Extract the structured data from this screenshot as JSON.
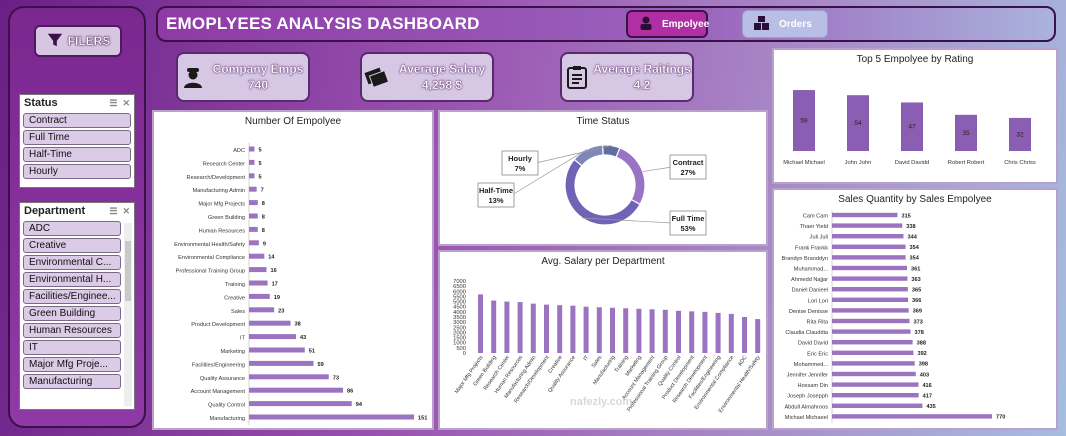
{
  "header": {
    "title": "EMOPLYEES ANALYSIS DASHBOARD",
    "nav_employee": "Empolyee",
    "nav_orders": "Orders"
  },
  "sidebar": {
    "filters_label": "FILERS",
    "status": {
      "title": "Status",
      "items": [
        "Contract",
        "Full Time",
        "Half-Time",
        "Hourly"
      ]
    },
    "department": {
      "title": "Department",
      "items": [
        "ADC",
        "Creative",
        "Environmental C...",
        "Environmental H...",
        "Facilities/Enginee...",
        "Green Building",
        "Human Resources",
        "IT",
        "Major Mfg Proje...",
        "Manufacturing"
      ]
    }
  },
  "kpis": [
    {
      "label": "Company Emps",
      "value": "740",
      "icon": "user-icon"
    },
    {
      "label": "Average Salary",
      "value": "4,258 $",
      "icon": "money-icon"
    },
    {
      "label": "Average Raitings",
      "value": "4.2",
      "icon": "clipboard-icon"
    }
  ],
  "colors": {
    "bar": "#9b73c0",
    "bar_dark": "#8a5fb3",
    "donut_full": "#6f63b6",
    "donut_contract": "#9a74c4",
    "donut_half": "#7f86b9",
    "donut_hourly": "#5f6fa0"
  },
  "watermark": "nafezly.com",
  "chart_data": [
    {
      "type": "bar",
      "orientation": "horizontal",
      "title": "Number Of Empolyee",
      "categories": [
        "ADC",
        "Research Center",
        "Research/Development",
        "Manufacturing Admin",
        "Major Mfg Projects",
        "Green Building",
        "Human Resources",
        "Environmental Health/Safety",
        "Environmental Compliance",
        "Professional Training Group",
        "Training",
        "Creative",
        "Sales",
        "Product Development",
        "IT",
        "Marketing",
        "Facilities/Engineering",
        "Quality Assurance",
        "Account Management",
        "Quality Control",
        "Manufacturing"
      ],
      "values": [
        5,
        5,
        5,
        7,
        8,
        8,
        8,
        9,
        14,
        16,
        17,
        19,
        23,
        38,
        43,
        51,
        59,
        73,
        86,
        94,
        151
      ]
    },
    {
      "type": "pie",
      "title": "Time Status",
      "labels": [
        "Contract",
        "Full Time",
        "Half-Time",
        "Hourly"
      ],
      "values": [
        27,
        53,
        13,
        7
      ],
      "display": [
        "27%",
        "53%",
        "13%",
        "7%"
      ]
    },
    {
      "type": "bar",
      "title": "Avg. Salary per Department",
      "categories": [
        "Major Mfg Projects",
        "Green Building",
        "Research Center",
        "Human Resources",
        "Manufacturing Admin",
        "Research/Development",
        "Creative",
        "Quality Assurance",
        "IT",
        "Sales",
        "Manufacturing",
        "Training",
        "Marketing",
        "Account Management",
        "Professional Training Group",
        "Quality Control",
        "Product Development",
        "Research Development",
        "Facilities/Engineering",
        "Environmental Compliance",
        "ADC",
        "Environmental Health/Safety"
      ],
      "values": [
        5700,
        5100,
        5000,
        4950,
        4800,
        4700,
        4650,
        4600,
        4500,
        4450,
        4400,
        4350,
        4300,
        4250,
        4200,
        4100,
        4050,
        4000,
        3900,
        3800,
        3500,
        3300
      ],
      "yticks": [
        0,
        500,
        1000,
        1500,
        2000,
        2500,
        3000,
        3500,
        4000,
        4500,
        5000,
        5500,
        6000,
        6500,
        7000
      ],
      "ylim": [
        0,
        7000
      ]
    },
    {
      "type": "bar",
      "title": "Top 5 Empolyee by Rating",
      "categories": [
        "Michael Michael",
        "John John",
        "David Davidd",
        "Robert Robert",
        "Chris Chriss"
      ],
      "values": [
        59,
        54,
        47,
        35,
        32
      ]
    },
    {
      "type": "bar",
      "orientation": "horizontal",
      "title": "Sales Quantity by Sales Empolyee",
      "categories": [
        "Cam Cam",
        "Thaer Yield",
        "Juli Juli",
        "Frank Frankk",
        "Brandyn Branddyn",
        "Muhammad...",
        "Ahmedd Najjar",
        "Daniel Danieel",
        "Lori Lori",
        "Denise Denisse",
        "Rita Rita",
        "Claudia Clauddia",
        "David David",
        "Eric Eric",
        "Mohammed...",
        "Jennifer Jennifer",
        "Hossam Din",
        "Joseph Josepph",
        "Abdull Almahroos",
        "Michael Michaeel"
      ],
      "values": [
        315,
        338,
        344,
        354,
        354,
        361,
        363,
        365,
        366,
        369,
        373,
        378,
        388,
        392,
        398,
        403,
        416,
        417,
        435,
        770
      ]
    }
  ]
}
